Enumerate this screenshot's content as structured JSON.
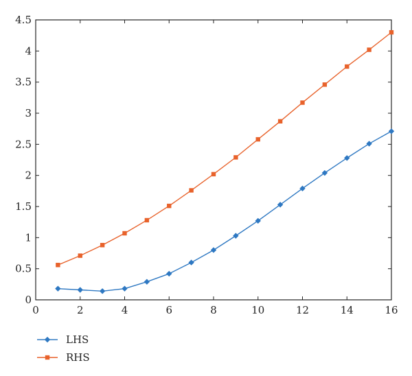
{
  "chart_data": {
    "type": "line",
    "title": "",
    "xlabel": "",
    "ylabel": "",
    "xlim": [
      0,
      16
    ],
    "ylim": [
      0,
      4.5
    ],
    "x_ticks": [
      "0",
      "2",
      "4",
      "6",
      "8",
      "10",
      "12",
      "14",
      "16"
    ],
    "y_ticks": [
      "0",
      "0.5",
      "1",
      "1.5",
      "2",
      "2.5",
      "3",
      "3.5",
      "4",
      "4.5"
    ],
    "x_tick_values": [
      0,
      2,
      4,
      6,
      8,
      10,
      12,
      14,
      16
    ],
    "y_tick_values": [
      0,
      0.5,
      1,
      1.5,
      2,
      2.5,
      3,
      3.5,
      4,
      4.5
    ],
    "grid": false,
    "legend_placement": "bottom-left",
    "x": [
      1,
      2,
      3,
      4,
      5,
      6,
      7,
      8,
      9,
      10,
      11,
      12,
      13,
      14,
      15,
      16
    ],
    "series": [
      {
        "name": "LHS",
        "color": "#2e78c2",
        "marker": "diamond",
        "values": [
          0.18,
          0.16,
          0.14,
          0.18,
          0.29,
          0.42,
          0.6,
          0.8,
          1.03,
          1.27,
          1.53,
          1.79,
          2.04,
          2.28,
          2.51,
          2.71
        ]
      },
      {
        "name": "RHS",
        "color": "#e8622b",
        "marker": "square",
        "values": [
          0.56,
          0.71,
          0.88,
          1.07,
          1.28,
          1.51,
          1.76,
          2.02,
          2.29,
          2.58,
          2.87,
          3.17,
          3.46,
          3.75,
          4.02,
          4.3
        ]
      }
    ]
  }
}
